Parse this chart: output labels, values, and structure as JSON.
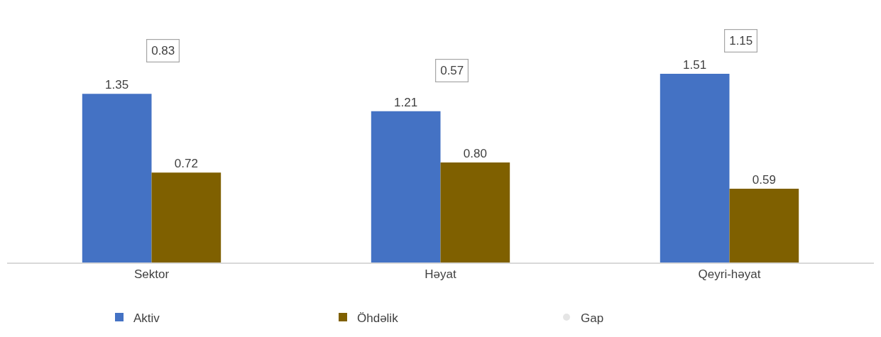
{
  "chart_data": {
    "type": "bar",
    "categories": [
      "Sektor",
      "Həyat",
      "Qeyri-həyat"
    ],
    "series": [
      {
        "name": "Aktiv",
        "color": "#4472c4",
        "values": [
          1.35,
          1.21,
          1.51
        ],
        "value_labels": [
          "1.35",
          "1.21",
          "1.51"
        ]
      },
      {
        "name": "Öhdəlik",
        "color": "#7f6000",
        "values": [
          0.72,
          0.8,
          0.59
        ],
        "value_labels": [
          "0.72",
          "0.80",
          "0.59"
        ]
      },
      {
        "name": "Gap",
        "type": "scatter",
        "marker": "none",
        "values": [
          null,
          null,
          null
        ]
      }
    ],
    "annotations": [
      "0.83",
      "0.57",
      "1.15"
    ],
    "legend": "bottom"
  }
}
